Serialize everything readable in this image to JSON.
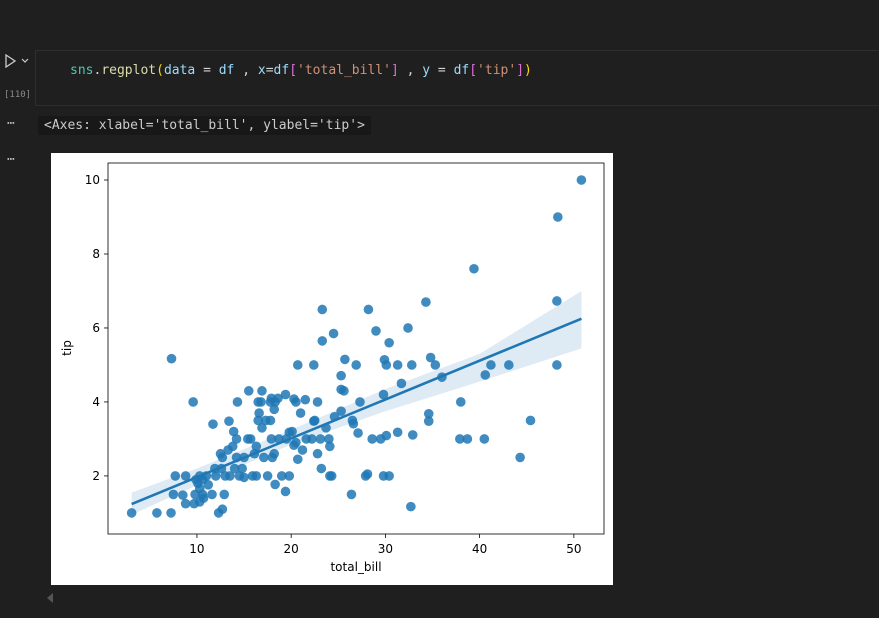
{
  "cell": {
    "execution_count": "[110]",
    "code_tokens": [
      {
        "text": "sns",
        "color": "#4ec9b0"
      },
      {
        "text": ".",
        "color": "#d4d4d4"
      },
      {
        "text": "regplot",
        "color": "#dcdcaa"
      },
      {
        "text": "(",
        "color": "#ffd700"
      },
      {
        "text": "data",
        "color": "#9cdcfe"
      },
      {
        "text": " = ",
        "color": "#d4d4d4"
      },
      {
        "text": "df",
        "color": "#9cdcfe"
      },
      {
        "text": " , ",
        "color": "#d4d4d4"
      },
      {
        "text": "x",
        "color": "#9cdcfe"
      },
      {
        "text": "=",
        "color": "#d4d4d4"
      },
      {
        "text": "df",
        "color": "#9cdcfe"
      },
      {
        "text": "[",
        "color": "#da70d6"
      },
      {
        "text": "'total_bill'",
        "color": "#ce9178"
      },
      {
        "text": "]",
        "color": "#da70d6"
      },
      {
        "text": " , ",
        "color": "#d4d4d4"
      },
      {
        "text": "y",
        "color": "#9cdcfe"
      },
      {
        "text": " = ",
        "color": "#d4d4d4"
      },
      {
        "text": "df",
        "color": "#9cdcfe"
      },
      {
        "text": "[",
        "color": "#da70d6"
      },
      {
        "text": "'tip'",
        "color": "#ce9178"
      },
      {
        "text": "]",
        "color": "#da70d6"
      },
      {
        "text": ")",
        "color": "#ffd700"
      }
    ]
  },
  "output": {
    "text": "<Axes: xlabel='total_bill', ylabel='tip'>"
  },
  "chart_data": {
    "type": "scatter",
    "xlabel": "total_bill",
    "ylabel": "tip",
    "color": "#1f77b4",
    "grid": false,
    "xlim": [
      0.56,
      53.2
    ],
    "ylim": [
      0.43,
      10.46
    ],
    "xticks": [
      10,
      20,
      30,
      40,
      50
    ],
    "yticks": [
      2,
      4,
      6,
      8,
      10
    ],
    "x": [
      50.8,
      48.3,
      39.4,
      48.2,
      34.3,
      23.3,
      28.2,
      32.4,
      29,
      24.5,
      23.3,
      30.4,
      7.3,
      34.8,
      25.7,
      29.9,
      30.1,
      20.7,
      22.4,
      26.9,
      31.3,
      32.8,
      35.3,
      41.2,
      43.1,
      48.2,
      40.6,
      36,
      25.3,
      25.3,
      25.6,
      31.7,
      9.6,
      14.3,
      16.5,
      16.8,
      17.8,
      18.3,
      20.5,
      21.5,
      22.8,
      27.3,
      29.8,
      38,
      24.6,
      25.3,
      22.4,
      34.6,
      34.6,
      15.5,
      18.6,
      19.4,
      20.3,
      21,
      16.5,
      17.3,
      13.4,
      11.7,
      26.5,
      27.1,
      28.6,
      29.5,
      31.3,
      32.9,
      37.9,
      38.7,
      40.5,
      45.4,
      44.3,
      30.1,
      24,
      24.1,
      26.6,
      23.1,
      22.2,
      21.6,
      20.3,
      20.7,
      24.1,
      23.2,
      24.3,
      26.4,
      28.1,
      29.8,
      30.4,
      32.7,
      27.9,
      19.8,
      19.4,
      18.3,
      17.5,
      16.3,
      15,
      14.5,
      13,
      12.9,
      12.7,
      12.3,
      11.6,
      11.2,
      10.3,
      10.1,
      10.6,
      9.7,
      10.3,
      10.7,
      7.25,
      5.75,
      3.07,
      7.5,
      8.5,
      8.8,
      9.8,
      7.7,
      8.8,
      10.3,
      11,
      12,
      13.5,
      15,
      14.8,
      16.1,
      16.3,
      17.1,
      18,
      17.9,
      18.7,
      19.5,
      20.1,
      19.8,
      15.4,
      14.2,
      13.8,
      12.5,
      11.9,
      12.7,
      13.3,
      15.7,
      16.9,
      17.8,
      18.2,
      16.6,
      9.9,
      10.6,
      14,
      15.9,
      13.9,
      22.5,
      23.7,
      19,
      20.5,
      21.2,
      22.8,
      16.9,
      17.9,
      18.2,
      14.2,
      12.6
    ],
    "y": [
      10,
      9,
      7.6,
      6.73,
      6.7,
      6.5,
      6.5,
      6,
      5.92,
      5.85,
      5.65,
      5.6,
      5.17,
      5.2,
      5.15,
      5.14,
      5,
      5,
      5,
      5,
      5,
      5,
      5,
      5,
      5,
      5,
      4.73,
      4.67,
      4.71,
      4.34,
      4.3,
      4.5,
      4,
      4,
      4,
      4,
      4,
      4,
      4,
      4.06,
      4,
      4,
      4.2,
      4,
      3.6,
      3.75,
      3.48,
      3.68,
      3.48,
      4.3,
      4.1,
      4.2,
      4.08,
      3.7,
      3.5,
      3.5,
      3.48,
      3.4,
      3.5,
      3.16,
      3,
      3,
      3.18,
      3.11,
      3,
      3,
      3,
      3.5,
      2.5,
      3.09,
      3,
      2.8,
      3.41,
      3,
      3,
      3,
      2.83,
      2.45,
      2,
      2.2,
      2,
      1.5,
      2.05,
      2,
      2,
      1.17,
      2,
      2,
      1.58,
      1.77,
      2,
      2,
      1.96,
      2,
      2,
      1.5,
      1.1,
      1,
      1.5,
      1.76,
      1.66,
      1.8,
      1.5,
      1.25,
      1.3,
      1.4,
      1,
      1,
      1,
      1.5,
      1.48,
      1.25,
      1.5,
      2,
      2,
      2,
      2,
      2,
      2,
      2.5,
      2.2,
      2.6,
      2.8,
      2.5,
      2.5,
      3,
      3,
      3,
      3.2,
      3.18,
      3,
      3,
      2.8,
      2.6,
      2.2,
      2.5,
      2.7,
      3,
      3.3,
      3.5,
      2.6,
      3.7,
      1.9,
      1.9,
      2.2,
      2,
      3.2,
      3.5,
      3.3,
      2,
      2.9,
      2.7,
      2.6,
      4.3,
      4.1,
      3.8,
      2.5,
      2.2
    ],
    "fit": {
      "x": [
        3.07,
        50.81
      ],
      "y": [
        1.24,
        6.25
      ]
    },
    "ci": {
      "x": [
        3.07,
        10,
        20,
        30,
        40,
        50.81
      ],
      "lower": [
        0.95,
        1.75,
        2.85,
        3.75,
        4.55,
        5.45
      ],
      "upper": [
        1.55,
        2.2,
        3.25,
        4.35,
        5.3,
        7.0
      ]
    }
  }
}
